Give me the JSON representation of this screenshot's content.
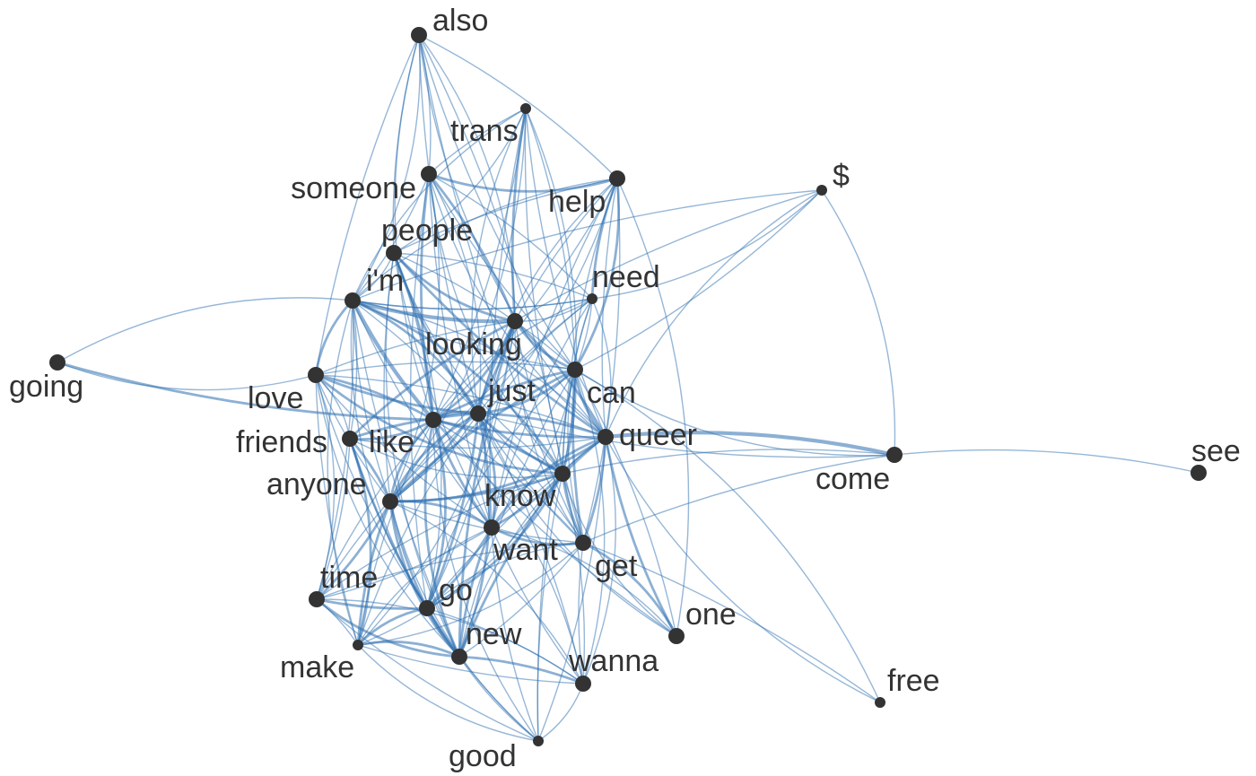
{
  "diagram": {
    "edge_color": "#2e6fb0",
    "node_color": "#333333",
    "label_color": "#333333",
    "nodes": [
      {
        "id": "also",
        "label": "also",
        "size": "large"
      },
      {
        "id": "trans",
        "label": "trans",
        "size": "small"
      },
      {
        "id": "someone",
        "label": "someone",
        "size": "large"
      },
      {
        "id": "help",
        "label": "help",
        "size": "large"
      },
      {
        "id": "dollar",
        "label": "$",
        "size": "small"
      },
      {
        "id": "people",
        "label": "people",
        "size": "large"
      },
      {
        "id": "im",
        "label": "i'm",
        "size": "large"
      },
      {
        "id": "need",
        "label": "need",
        "size": "small"
      },
      {
        "id": "looking",
        "label": "looking",
        "size": "large"
      },
      {
        "id": "going",
        "label": "going",
        "size": "large"
      },
      {
        "id": "love",
        "label": "love",
        "size": "large"
      },
      {
        "id": "can",
        "label": "can",
        "size": "large"
      },
      {
        "id": "just",
        "label": "just",
        "size": "large"
      },
      {
        "id": "like",
        "label": "like",
        "size": "large"
      },
      {
        "id": "friends",
        "label": "friends",
        "size": "large"
      },
      {
        "id": "queer",
        "label": "queer",
        "size": "large"
      },
      {
        "id": "come",
        "label": "come",
        "size": "large"
      },
      {
        "id": "see",
        "label": "see",
        "size": "large"
      },
      {
        "id": "anyone",
        "label": "anyone",
        "size": "large"
      },
      {
        "id": "know",
        "label": "know",
        "size": "large"
      },
      {
        "id": "want",
        "label": "want",
        "size": "large"
      },
      {
        "id": "get",
        "label": "get",
        "size": "large"
      },
      {
        "id": "time",
        "label": "time",
        "size": "large"
      },
      {
        "id": "go",
        "label": "go",
        "size": "large"
      },
      {
        "id": "one",
        "label": "one",
        "size": "large"
      },
      {
        "id": "make",
        "label": "make",
        "size": "small"
      },
      {
        "id": "new",
        "label": "new",
        "size": "large"
      },
      {
        "id": "wanna",
        "label": "wanna",
        "size": "large"
      },
      {
        "id": "free",
        "label": "free",
        "size": "small"
      },
      {
        "id": "good",
        "label": "good",
        "size": "small"
      }
    ],
    "edges": [
      [
        "going",
        "im",
        1
      ],
      [
        "going",
        "like",
        2
      ],
      [
        "going",
        "love",
        1
      ],
      [
        "come",
        "see",
        1
      ],
      [
        "come",
        "queer",
        3
      ],
      [
        "come",
        "can",
        1
      ],
      [
        "come",
        "get",
        1
      ],
      [
        "come",
        "dollar",
        1
      ],
      [
        "come",
        "just",
        1
      ],
      [
        "come",
        "know",
        1
      ],
      [
        "dollar",
        "need",
        1
      ],
      [
        "dollar",
        "looking",
        1
      ],
      [
        "dollar",
        "queer",
        1
      ],
      [
        "dollar",
        "can",
        1
      ],
      [
        "dollar",
        "im",
        1
      ],
      [
        "free",
        "queer",
        1
      ],
      [
        "free",
        "get",
        1
      ],
      [
        "free",
        "can",
        1
      ],
      [
        "also",
        "someone",
        1
      ],
      [
        "also",
        "people",
        1
      ],
      [
        "also",
        "looking",
        1
      ],
      [
        "also",
        "just",
        1
      ],
      [
        "also",
        "like",
        1
      ],
      [
        "also",
        "know",
        1
      ],
      [
        "also",
        "can",
        1
      ],
      [
        "also",
        "im",
        1
      ],
      [
        "also",
        "love",
        1
      ],
      [
        "also",
        "queer",
        1
      ],
      [
        "also",
        "help",
        1
      ],
      [
        "also",
        "get",
        1
      ],
      [
        "trans",
        "people",
        1
      ],
      [
        "trans",
        "looking",
        2
      ],
      [
        "trans",
        "just",
        1
      ],
      [
        "trans",
        "like",
        1
      ],
      [
        "trans",
        "queer",
        1
      ],
      [
        "trans",
        "know",
        1
      ],
      [
        "trans",
        "someone",
        1
      ],
      [
        "trans",
        "im",
        1
      ],
      [
        "trans",
        "can",
        1
      ],
      [
        "trans",
        "get",
        1
      ],
      [
        "trans",
        "anyone",
        1
      ],
      [
        "trans",
        "want",
        1
      ],
      [
        "someone",
        "help",
        2
      ],
      [
        "someone",
        "looking",
        2
      ],
      [
        "someone",
        "like",
        2
      ],
      [
        "someone",
        "just",
        1
      ],
      [
        "someone",
        "can",
        1
      ],
      [
        "someone",
        "know",
        1
      ],
      [
        "someone",
        "im",
        1
      ],
      [
        "someone",
        "go",
        1
      ],
      [
        "someone",
        "anyone",
        1
      ],
      [
        "someone",
        "want",
        1
      ],
      [
        "someone",
        "queer",
        1
      ],
      [
        "someone",
        "need",
        1
      ],
      [
        "help",
        "need",
        2
      ],
      [
        "help",
        "can",
        2
      ],
      [
        "help",
        "looking",
        1
      ],
      [
        "help",
        "just",
        1
      ],
      [
        "help",
        "like",
        1
      ],
      [
        "help",
        "know",
        1
      ],
      [
        "help",
        "anyone",
        1
      ],
      [
        "help",
        "queer",
        1
      ],
      [
        "help",
        "im",
        1
      ],
      [
        "help",
        "get",
        1
      ],
      [
        "help",
        "want",
        1
      ],
      [
        "help",
        "one",
        1
      ],
      [
        "help",
        "people",
        1
      ],
      [
        "people",
        "looking",
        2
      ],
      [
        "people",
        "like",
        2
      ],
      [
        "people",
        "just",
        2
      ],
      [
        "people",
        "im",
        1
      ],
      [
        "people",
        "queer",
        2
      ],
      [
        "people",
        "know",
        1
      ],
      [
        "people",
        "can",
        1
      ],
      [
        "people",
        "want",
        1
      ],
      [
        "people",
        "go",
        1
      ],
      [
        "people",
        "anyone",
        1
      ],
      [
        "people",
        "new",
        1
      ],
      [
        "people",
        "need",
        1
      ],
      [
        "im",
        "looking",
        3
      ],
      [
        "im",
        "just",
        2
      ],
      [
        "im",
        "like",
        3
      ],
      [
        "im",
        "love",
        2
      ],
      [
        "im",
        "friends",
        1
      ],
      [
        "im",
        "anyone",
        1
      ],
      [
        "im",
        "know",
        2
      ],
      [
        "im",
        "want",
        1
      ],
      [
        "im",
        "go",
        1
      ],
      [
        "im",
        "time",
        1
      ],
      [
        "im",
        "can",
        1
      ],
      [
        "im",
        "queer",
        1
      ],
      [
        "im",
        "new",
        1
      ],
      [
        "im",
        "make",
        1
      ],
      [
        "im",
        "get",
        1
      ],
      [
        "im",
        "need",
        1
      ],
      [
        "need",
        "looking",
        1
      ],
      [
        "need",
        "just",
        1
      ],
      [
        "need",
        "like",
        1
      ],
      [
        "need",
        "can",
        1
      ],
      [
        "need",
        "know",
        1
      ],
      [
        "need",
        "queer",
        1
      ],
      [
        "need",
        "anyone",
        1
      ],
      [
        "need",
        "get",
        1
      ],
      [
        "need",
        "im",
        1
      ],
      [
        "need",
        "want",
        1
      ],
      [
        "looking",
        "like",
        2
      ],
      [
        "looking",
        "just",
        2
      ],
      [
        "looking",
        "can",
        2
      ],
      [
        "looking",
        "queer",
        2
      ],
      [
        "looking",
        "friends",
        2
      ],
      [
        "looking",
        "anyone",
        2
      ],
      [
        "looking",
        "know",
        1
      ],
      [
        "looking",
        "want",
        1
      ],
      [
        "looking",
        "go",
        1
      ],
      [
        "looking",
        "new",
        2
      ],
      [
        "looking",
        "make",
        1
      ],
      [
        "looking",
        "love",
        1
      ],
      [
        "looking",
        "get",
        1
      ],
      [
        "love",
        "like",
        2
      ],
      [
        "love",
        "just",
        2
      ],
      [
        "love",
        "friends",
        1
      ],
      [
        "love",
        "anyone",
        1
      ],
      [
        "love",
        "know",
        2
      ],
      [
        "love",
        "queer",
        1
      ],
      [
        "love",
        "go",
        1
      ],
      [
        "love",
        "time",
        1
      ],
      [
        "love",
        "make",
        1
      ],
      [
        "love",
        "new",
        1
      ],
      [
        "love",
        "can",
        1
      ],
      [
        "love",
        "want",
        1
      ],
      [
        "can",
        "just",
        2
      ],
      [
        "can",
        "like",
        2
      ],
      [
        "can",
        "queer",
        2
      ],
      [
        "can",
        "know",
        2
      ],
      [
        "can",
        "anyone",
        2
      ],
      [
        "can",
        "want",
        1
      ],
      [
        "can",
        "get",
        2
      ],
      [
        "can",
        "go",
        1
      ],
      [
        "can",
        "one",
        1
      ],
      [
        "can",
        "new",
        1
      ],
      [
        "can",
        "wanna",
        1
      ],
      [
        "can",
        "good",
        1
      ],
      [
        "just",
        "like",
        3
      ],
      [
        "just",
        "queer",
        2
      ],
      [
        "just",
        "know",
        2
      ],
      [
        "just",
        "want",
        2
      ],
      [
        "just",
        "friends",
        2
      ],
      [
        "just",
        "anyone",
        2
      ],
      [
        "just",
        "go",
        2
      ],
      [
        "just",
        "time",
        1
      ],
      [
        "just",
        "new",
        2
      ],
      [
        "just",
        "get",
        1
      ],
      [
        "just",
        "one",
        1
      ],
      [
        "just",
        "wanna",
        1
      ],
      [
        "just",
        "make",
        1
      ],
      [
        "like",
        "friends",
        2
      ],
      [
        "like",
        "queer",
        2
      ],
      [
        "like",
        "anyone",
        2
      ],
      [
        "like",
        "know",
        2
      ],
      [
        "like",
        "want",
        2
      ],
      [
        "like",
        "go",
        2
      ],
      [
        "like",
        "time",
        1
      ],
      [
        "like",
        "new",
        2
      ],
      [
        "like",
        "get",
        1
      ],
      [
        "like",
        "make",
        1
      ],
      [
        "like",
        "wanna",
        1
      ],
      [
        "like",
        "one",
        1
      ],
      [
        "like",
        "good",
        1
      ],
      [
        "friends",
        "anyone",
        2
      ],
      [
        "friends",
        "new",
        2
      ],
      [
        "friends",
        "make",
        2
      ],
      [
        "friends",
        "go",
        1
      ],
      [
        "friends",
        "know",
        1
      ],
      [
        "friends",
        "time",
        1
      ],
      [
        "friends",
        "queer",
        1
      ],
      [
        "queer",
        "anyone",
        2
      ],
      [
        "queer",
        "know",
        2
      ],
      [
        "queer",
        "want",
        2
      ],
      [
        "queer",
        "get",
        2
      ],
      [
        "queer",
        "one",
        2
      ],
      [
        "queer",
        "wanna",
        1
      ],
      [
        "queer",
        "go",
        1
      ],
      [
        "queer",
        "new",
        1
      ],
      [
        "queer",
        "good",
        1
      ],
      [
        "anyone",
        "know",
        2
      ],
      [
        "anyone",
        "want",
        2
      ],
      [
        "anyone",
        "go",
        2
      ],
      [
        "anyone",
        "new",
        2
      ],
      [
        "anyone",
        "time",
        2
      ],
      [
        "anyone",
        "make",
        2
      ],
      [
        "anyone",
        "wanna",
        1
      ],
      [
        "anyone",
        "get",
        1
      ],
      [
        "anyone",
        "good",
        1
      ],
      [
        "know",
        "want",
        2
      ],
      [
        "know",
        "get",
        2
      ],
      [
        "know",
        "go",
        2
      ],
      [
        "know",
        "new",
        2
      ],
      [
        "know",
        "one",
        1
      ],
      [
        "know",
        "wanna",
        1
      ],
      [
        "know",
        "time",
        1
      ],
      [
        "know",
        "make",
        1
      ],
      [
        "know",
        "good",
        1
      ],
      [
        "want",
        "get",
        2
      ],
      [
        "want",
        "go",
        2
      ],
      [
        "want",
        "new",
        2
      ],
      [
        "want",
        "one",
        1
      ],
      [
        "want",
        "wanna",
        1
      ],
      [
        "want",
        "make",
        1
      ],
      [
        "want",
        "time",
        1
      ],
      [
        "want",
        "good",
        1
      ],
      [
        "get",
        "one",
        2
      ],
      [
        "get",
        "wanna",
        1
      ],
      [
        "get",
        "go",
        1
      ],
      [
        "get",
        "new",
        1
      ],
      [
        "get",
        "time",
        1
      ],
      [
        "get",
        "make",
        1
      ],
      [
        "time",
        "go",
        2
      ],
      [
        "time",
        "new",
        2
      ],
      [
        "time",
        "make",
        1
      ],
      [
        "time",
        "good",
        1
      ],
      [
        "time",
        "wanna",
        1
      ],
      [
        "go",
        "new",
        2
      ],
      [
        "go",
        "make",
        2
      ],
      [
        "go",
        "wanna",
        1
      ],
      [
        "go",
        "good",
        1
      ],
      [
        "make",
        "new",
        2
      ],
      [
        "make",
        "wanna",
        1
      ],
      [
        "make",
        "good",
        1
      ],
      [
        "new",
        "wanna",
        2
      ],
      [
        "new",
        "good",
        1
      ],
      [
        "wanna",
        "good",
        1
      ]
    ]
  }
}
